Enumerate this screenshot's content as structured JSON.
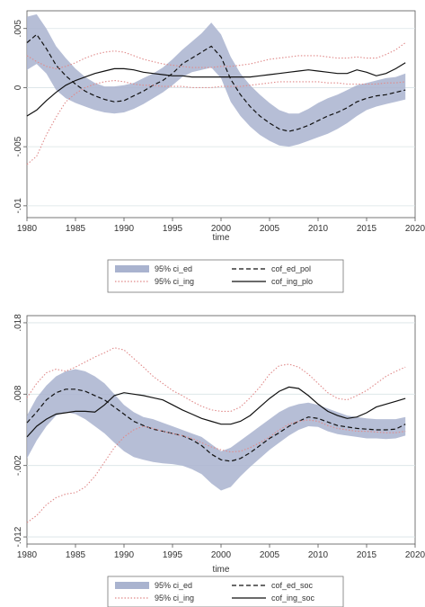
{
  "chart_data": [
    {
      "type": "line",
      "xlabel": "time",
      "ylabel": "",
      "xlim": [
        1980,
        2020
      ],
      "ylim": [
        -0.011,
        0.0065
      ],
      "xticks": [
        "1980",
        "1985",
        "1990",
        "1995",
        "2000",
        "2005",
        "2010",
        "2015",
        "2020"
      ],
      "yticks": [
        {
          "value": 0.005,
          "label": ".005"
        },
        {
          "value": 0,
          "label": "0"
        },
        {
          "value": -0.005,
          "label": "-.005"
        },
        {
          "value": -0.01,
          "label": "-.01"
        }
      ],
      "grid": true,
      "legend_position": "bottom",
      "legend": [
        {
          "key": "ci_ed",
          "label": "95% ci_ed"
        },
        {
          "key": "ed",
          "label": "cof_ed_pol"
        },
        {
          "key": "ci_ing",
          "label": "95% ci_ing"
        },
        {
          "key": "ing",
          "label": "cof_ing_plo"
        }
      ],
      "x": [
        1980,
        1981,
        1982,
        1983,
        1984,
        1985,
        1986,
        1987,
        1988,
        1989,
        1990,
        1991,
        1992,
        1993,
        1994,
        1995,
        1996,
        1997,
        1998,
        1999,
        2000,
        2001,
        2002,
        2003,
        2004,
        2005,
        2006,
        2007,
        2008,
        2009,
        2010,
        2011,
        2012,
        2013,
        2014,
        2015,
        2016,
        2017,
        2018,
        2019
      ],
      "series": [
        {
          "key": "ci_ed",
          "style": "band",
          "color": "#a9b3cf",
          "lower": [
            0.0015,
            0.002,
            0.0012,
            -0.0002,
            -0.0009,
            -0.0013,
            -0.0016,
            -0.0019,
            -0.0021,
            -0.0022,
            -0.0021,
            -0.0018,
            -0.0014,
            -0.0009,
            -0.0004,
            0.0002,
            0.0009,
            0.0013,
            0.0015,
            0.0017,
            0.0008,
            -0.0012,
            -0.0024,
            -0.0033,
            -0.004,
            -0.0045,
            -0.0049,
            -0.005,
            -0.0048,
            -0.0045,
            -0.0042,
            -0.0039,
            -0.0035,
            -0.003,
            -0.0024,
            -0.0019,
            -0.0016,
            -0.0014,
            -0.0012,
            -0.001
          ],
          "upper": [
            0.006,
            0.0062,
            0.005,
            0.0035,
            0.0025,
            0.0016,
            0.0009,
            0.0004,
            0.0001,
            0.0001,
            0.0002,
            0.0004,
            0.0008,
            0.0012,
            0.0017,
            0.0024,
            0.0032,
            0.0039,
            0.0046,
            0.0055,
            0.0045,
            0.0026,
            0.0012,
            0.0002,
            -0.0006,
            -0.0013,
            -0.0019,
            -0.0022,
            -0.0022,
            -0.0018,
            -0.0013,
            -0.0009,
            -0.0006,
            -0.0002,
            0.0002,
            0.0004,
            0.0006,
            0.0008,
            0.0009,
            0.0012
          ]
        },
        {
          "key": "ed",
          "style": "dashed",
          "color": "#111111",
          "values": [
            0.0038,
            0.0045,
            0.0033,
            0.0019,
            0.001,
            0.0003,
            -0.0003,
            -0.0007,
            -0.001,
            -0.0012,
            -0.0011,
            -0.0007,
            -0.0003,
            0.0002,
            0.0006,
            0.0012,
            0.002,
            0.0025,
            0.003,
            0.0035,
            0.0026,
            0.0007,
            -0.0006,
            -0.0016,
            -0.0024,
            -0.003,
            -0.0035,
            -0.0037,
            -0.0035,
            -0.0032,
            -0.0028,
            -0.0024,
            -0.0021,
            -0.0017,
            -0.0012,
            -0.0009,
            -0.0007,
            -0.0006,
            -0.0004,
            -0.0002
          ]
        },
        {
          "key": "ci_ing",
          "style": "dotted",
          "color": "#e08a8a",
          "lower": [
            -0.0065,
            -0.0058,
            -0.004,
            -0.0025,
            -0.0012,
            -0.0005,
            0.0,
            0.0003,
            0.0005,
            0.0006,
            0.0005,
            0.0003,
            0.0002,
            0.0002,
            0.0001,
            0.0001,
            0.0001,
            0.0,
            0.0,
            0.0,
            0.0001,
            0.0001,
            0.0001,
            0.0002,
            0.0003,
            0.0004,
            0.0005,
            0.0005,
            0.0005,
            0.0005,
            0.0005,
            0.0004,
            0.0004,
            0.0003,
            0.0003,
            0.0003,
            0.0003,
            0.0004,
            0.0004,
            0.0005
          ],
          "upper": [
            0.0027,
            0.0022,
            0.0018,
            0.0016,
            0.0018,
            0.0021,
            0.0025,
            0.0028,
            0.003,
            0.0031,
            0.003,
            0.0027,
            0.0024,
            0.0022,
            0.002,
            0.0019,
            0.0018,
            0.0017,
            0.0017,
            0.0017,
            0.0018,
            0.0018,
            0.0019,
            0.002,
            0.0022,
            0.0024,
            0.0025,
            0.0026,
            0.0027,
            0.0027,
            0.0027,
            0.0026,
            0.0025,
            0.0025,
            0.0026,
            0.0025,
            0.0025,
            0.0028,
            0.0032,
            0.0038
          ]
        },
        {
          "key": "ing",
          "style": "solid",
          "color": "#111111",
          "values": [
            -0.0024,
            -0.0019,
            -0.0011,
            -0.0004,
            0.0002,
            0.0006,
            0.0009,
            0.0012,
            0.0014,
            0.0016,
            0.0016,
            0.0015,
            0.0013,
            0.0012,
            0.0011,
            0.001,
            0.001,
            0.0009,
            0.0009,
            0.0009,
            0.0009,
            0.0009,
            0.0009,
            0.0009,
            0.001,
            0.0011,
            0.0012,
            0.0013,
            0.0014,
            0.0015,
            0.0014,
            0.0013,
            0.0012,
            0.0012,
            0.0015,
            0.0013,
            0.001,
            0.0012,
            0.0016,
            0.0021
          ]
        }
      ]
    },
    {
      "type": "line",
      "xlabel": "time",
      "ylabel": "",
      "xlim": [
        1980,
        2020
      ],
      "ylim": [
        -0.013,
        0.019
      ],
      "xticks": [
        "1980",
        "1985",
        "1990",
        "1995",
        "2000",
        "2005",
        "2010",
        "2015",
        "2020"
      ],
      "yticks": [
        {
          "value": 0.018,
          "label": ".018"
        },
        {
          "value": 0.008,
          "label": ".008"
        },
        {
          "value": -0.002,
          "label": "-.002"
        },
        {
          "value": -0.012,
          "label": "-.012"
        }
      ],
      "grid": true,
      "legend_position": "bottom",
      "legend": [
        {
          "key": "ci_ed",
          "label": "95% ci_ed"
        },
        {
          "key": "ed",
          "label": "cof_ed_soc"
        },
        {
          "key": "ci_ing",
          "label": "95% ci_ing"
        },
        {
          "key": "ing",
          "label": "cof_ing_soc"
        }
      ],
      "x": [
        1980,
        1981,
        1982,
        1983,
        1984,
        1985,
        1986,
        1987,
        1988,
        1989,
        1990,
        1991,
        1992,
        1993,
        1994,
        1995,
        1996,
        1997,
        1998,
        1999,
        2000,
        2001,
        2002,
        2003,
        2004,
        2005,
        2006,
        2007,
        2008,
        2009,
        2010,
        2011,
        2012,
        2013,
        2014,
        2015,
        2016,
        2017,
        2018,
        2019
      ],
      "series": [
        {
          "key": "ci_ed",
          "style": "band",
          "color": "#a9b3cf",
          "lower": [
            -0.001,
            0.0015,
            0.0035,
            0.005,
            0.0055,
            0.0052,
            0.0045,
            0.0035,
            0.0025,
            0.0012,
            0.0,
            -0.0008,
            -0.0012,
            -0.0015,
            -0.0017,
            -0.0018,
            -0.002,
            -0.0025,
            -0.0032,
            -0.0045,
            -0.0055,
            -0.005,
            -0.0035,
            -0.0022,
            -0.001,
            0.0002,
            0.0012,
            0.0022,
            0.003,
            0.0035,
            0.0034,
            0.0028,
            0.0024,
            0.0022,
            0.002,
            0.0018,
            0.0018,
            0.0017,
            0.0018,
            0.0022
          ],
          "upper": [
            0.005,
            0.0075,
            0.0092,
            0.0105,
            0.0112,
            0.0115,
            0.0112,
            0.0105,
            0.0095,
            0.008,
            0.0065,
            0.0055,
            0.0048,
            0.0045,
            0.004,
            0.0035,
            0.003,
            0.0025,
            0.002,
            0.001,
            0.0,
            0.0005,
            0.0015,
            0.0025,
            0.0035,
            0.0045,
            0.0055,
            0.0062,
            0.0066,
            0.0068,
            0.0065,
            0.006,
            0.0055,
            0.005,
            0.0048,
            0.0046,
            0.0045,
            0.0045,
            0.0045,
            0.0048
          ]
        },
        {
          "key": "ed",
          "style": "dashed",
          "color": "#111111",
          "values": [
            0.004,
            0.0055,
            0.0072,
            0.0082,
            0.0087,
            0.0087,
            0.0084,
            0.0078,
            0.0072,
            0.0062,
            0.0052,
            0.0042,
            0.0036,
            0.0031,
            0.0028,
            0.0025,
            0.0022,
            0.0016,
            0.0008,
            -0.0004,
            -0.0012,
            -0.0014,
            -0.001,
            -0.0002,
            0.0008,
            0.0018,
            0.0026,
            0.0035,
            0.0042,
            0.0048,
            0.0046,
            0.0041,
            0.0036,
            0.0034,
            0.0032,
            0.0031,
            0.003,
            0.003,
            0.0031,
            0.0038
          ]
        },
        {
          "key": "ci_ing",
          "style": "dotted",
          "color": "#e08a8a",
          "lower": [
            -0.01,
            -0.009,
            -0.0075,
            -0.0065,
            -0.006,
            -0.0058,
            -0.005,
            -0.0035,
            -0.0015,
            0.0005,
            0.002,
            0.003,
            0.0035,
            0.0032,
            0.0028,
            0.0025,
            0.0022,
            0.0018,
            0.0012,
            0.0006,
            0.0002,
            -0.0001,
            0.0,
            0.0005,
            0.0012,
            0.002,
            0.003,
            0.0038,
            0.0042,
            0.0044,
            0.0042,
            0.0036,
            0.0032,
            0.003,
            0.0028,
            0.0028,
            0.0027,
            0.0026,
            0.0026,
            0.0028
          ],
          "upper": [
            0.0075,
            0.0095,
            0.011,
            0.0115,
            0.0112,
            0.0118,
            0.0125,
            0.0132,
            0.0138,
            0.0145,
            0.0142,
            0.013,
            0.0118,
            0.0105,
            0.0095,
            0.0085,
            0.0078,
            0.007,
            0.0063,
            0.0058,
            0.0056,
            0.0056,
            0.0062,
            0.0075,
            0.009,
            0.0108,
            0.012,
            0.0122,
            0.0118,
            0.0108,
            0.0095,
            0.0082,
            0.0074,
            0.0072,
            0.0078,
            0.0085,
            0.0095,
            0.0105,
            0.0112,
            0.0118
          ]
        },
        {
          "key": "ing",
          "style": "solid",
          "color": "#111111",
          "values": [
            0.002,
            0.0035,
            0.0045,
            0.0052,
            0.0054,
            0.0056,
            0.0056,
            0.0055,
            0.0065,
            0.0078,
            0.0082,
            0.008,
            0.0078,
            0.0075,
            0.0072,
            0.0065,
            0.0058,
            0.0052,
            0.0046,
            0.0042,
            0.0038,
            0.0038,
            0.0042,
            0.005,
            0.0062,
            0.0074,
            0.0084,
            0.009,
            0.0088,
            0.0078,
            0.0066,
            0.0056,
            0.005,
            0.0046,
            0.0048,
            0.0054,
            0.0062,
            0.0066,
            0.007,
            0.0074
          ]
        }
      ]
    }
  ]
}
